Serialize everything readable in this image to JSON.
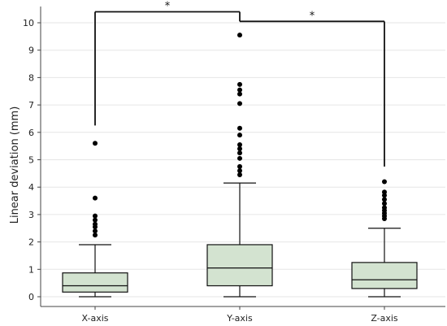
{
  "chart_data": {
    "type": "box",
    "ylabel": "Linear deviation (mm)",
    "xlabel": "",
    "ylim": [
      0,
      10.4
    ],
    "yticks": [
      0,
      1,
      2,
      3,
      4,
      5,
      6,
      7,
      8,
      9,
      10
    ],
    "grid": "horizontal",
    "box_color": "#d3e3d0",
    "categories": [
      "X-axis",
      "Y-axis",
      "Z-axis"
    ],
    "boxes": [
      {
        "label": "X-axis",
        "whisker_low": 0.0,
        "q1": 0.17,
        "median": 0.4,
        "q3": 0.87,
        "whisker_high": 1.9,
        "outliers": [
          2.25,
          2.4,
          2.55,
          2.65,
          2.8,
          2.95,
          3.6,
          5.6
        ]
      },
      {
        "label": "Y-axis",
        "whisker_low": 0.0,
        "q1": 0.4,
        "median": 1.05,
        "q3": 1.9,
        "whisker_high": 4.15,
        "outliers": [
          4.45,
          4.6,
          4.75,
          5.05,
          5.25,
          5.4,
          5.55,
          5.9,
          6.15,
          7.05,
          7.4,
          7.55,
          7.75,
          9.55
        ]
      },
      {
        "label": "Z-axis",
        "whisker_low": 0.0,
        "q1": 0.3,
        "median": 0.62,
        "q3": 1.25,
        "whisker_high": 2.5,
        "outliers": [
          2.85,
          2.95,
          3.05,
          3.15,
          3.25,
          3.4,
          3.55,
          3.7,
          3.82,
          4.2
        ]
      }
    ],
    "significance": [
      {
        "from": "X-axis",
        "to": "Y-axis",
        "label": "*",
        "level": 10.4,
        "left_drop": 6.25,
        "right_drop": 10.05
      },
      {
        "from": "Y-axis",
        "to": "Z-axis",
        "label": "*",
        "level": 10.05,
        "left_drop": 10.05,
        "right_drop": 4.75
      }
    ]
  }
}
